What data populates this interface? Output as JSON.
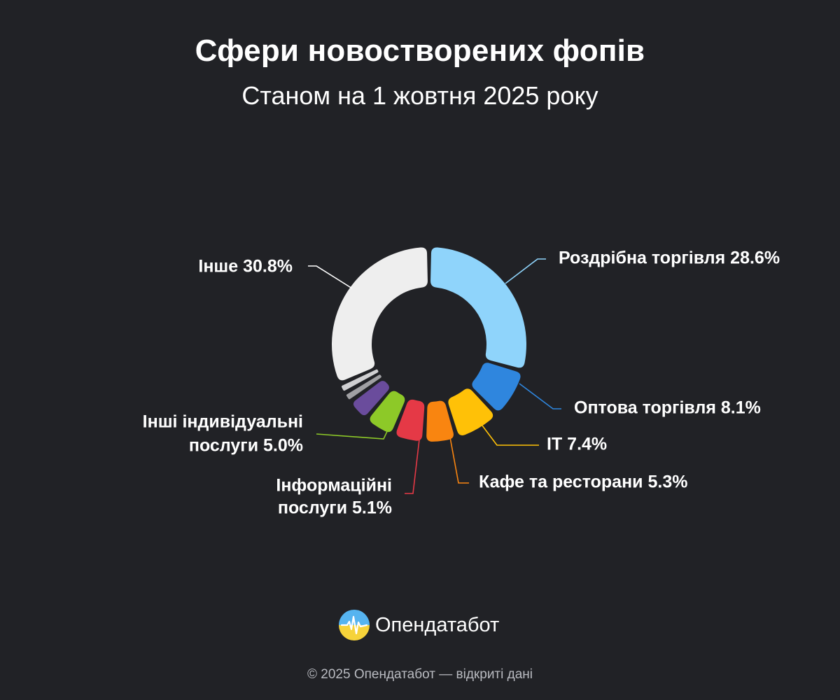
{
  "header": {
    "title": "Сфери новостворених фопів",
    "subtitle": "Станом на 1 жовтня 2025 року"
  },
  "chart_data": {
    "type": "pie",
    "variant": "donut",
    "title": "Сфери новостворених фопів",
    "subtitle": "Станом на 1 жовтня 2025 року",
    "unit": "%",
    "slices": [
      {
        "label": "Роздрібна торгівля",
        "value": 28.6,
        "display": "Роздрібна торгівля 28.6%",
        "color": "#8fd4fb"
      },
      {
        "label": "Оптова торгівля",
        "value": 8.1,
        "display": "Оптова торгівля 8.1%",
        "color": "#2f86de"
      },
      {
        "label": "IT",
        "value": 7.4,
        "display": "IT 7.4%",
        "color": "#ffc107"
      },
      {
        "label": "Кафе та ресторани",
        "value": 5.3,
        "display": "Кафе та ресторани 5.3%",
        "color": "#f98510"
      },
      {
        "label": "Інформаційні послуги",
        "value": 5.1,
        "display": [
          "Інформаційні",
          "послуги 5.1%"
        ],
        "color": "#e53946"
      },
      {
        "label": "Інші індивідуальні послуги",
        "value": 5.0,
        "display": [
          "Інші індивідуальні",
          "послуги 5.0%"
        ],
        "color": "#8dc928"
      },
      {
        "label": "",
        "value": 3.7,
        "display": null,
        "color": "#6a4c9c"
      },
      {
        "label": "",
        "value": 1.6,
        "display": null,
        "color": "#a0a0a3"
      },
      {
        "label": "",
        "value": 1.6,
        "display": null,
        "color": "#d0d0d2"
      },
      {
        "label": "Інше",
        "value": 30.8,
        "display": "Інше 30.8%",
        "color": "#eeeeee"
      }
    ]
  },
  "brand": {
    "name": "Опендатабот",
    "logo_icon": "opendatabot-logo-icon"
  },
  "footer": {
    "text": "© 2025 Опендатабот — відкриті дані"
  }
}
